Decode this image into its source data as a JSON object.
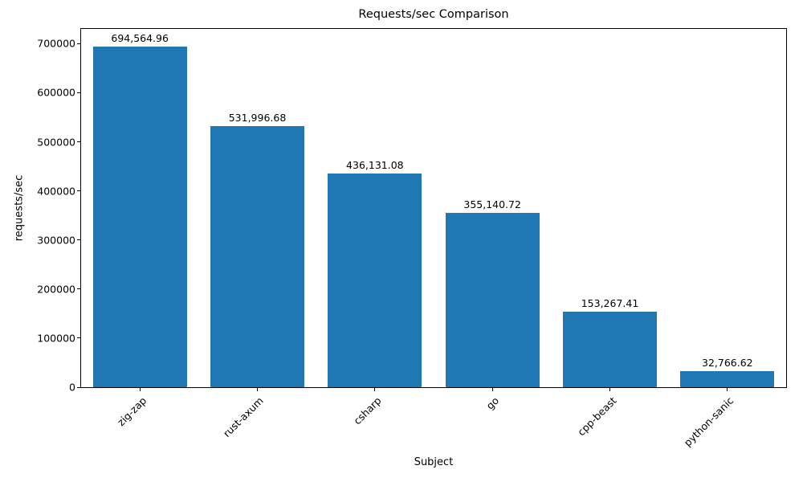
{
  "chart_data": {
    "type": "bar",
    "title": "Requests/sec Comparison",
    "xlabel": "Subject",
    "ylabel": "requests/sec",
    "categories": [
      "zig-zap",
      "rust-axum",
      "csharp",
      "go",
      "cpp-beast",
      "python-sanic"
    ],
    "values": [
      694564.96,
      531996.68,
      436131.08,
      355140.72,
      153267.41,
      32766.62
    ],
    "bar_labels": [
      "694,564.96",
      "531,996.68",
      "436,131.08",
      "355,140.72",
      "153,267.41",
      "32,766.62"
    ],
    "bar_color": "#1f77b4",
    "ylim": [
      0,
      730000
    ],
    "yticks": [
      0,
      100000,
      200000,
      300000,
      400000,
      500000,
      600000,
      700000
    ],
    "grid": false,
    "legend_position": "none"
  }
}
